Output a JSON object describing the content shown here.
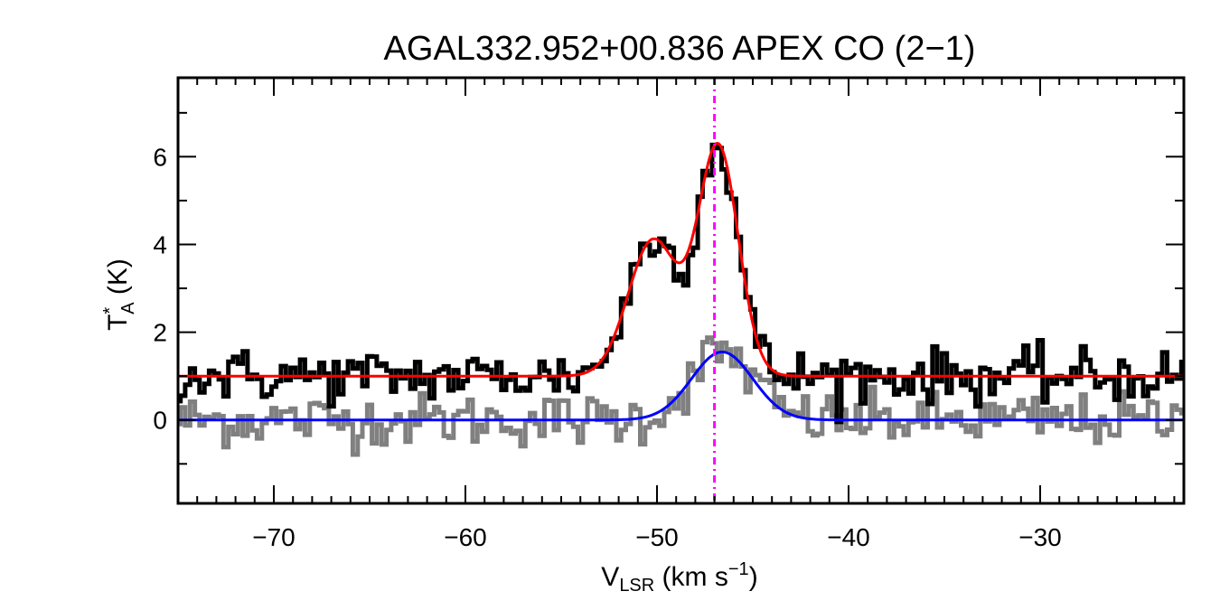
{
  "chart_data": {
    "type": "line",
    "title": "AGAL332.952+00.836  APEX CO (2−1)",
    "xlabel": {
      "base": "V",
      "sub": "LSR",
      "rest": " (km s",
      "sup": "−1",
      "close": ")"
    },
    "ylabel": {
      "base": "T",
      "sup": "*",
      "sub": "A",
      "rest": " (K)"
    },
    "xlim": [
      -75,
      -22.5
    ],
    "ylim": [
      -1.9,
      7.8
    ],
    "xticks": [
      -70,
      -60,
      -50,
      -40,
      -30
    ],
    "xtick_labels": [
      "−70",
      "−60",
      "−50",
      "−40",
      "−30"
    ],
    "yticks": [
      0,
      2,
      4,
      6
    ],
    "ytick_labels": [
      "0",
      "2",
      "4",
      "6"
    ],
    "vline": {
      "x": -47.0,
      "color": "#ff00ff",
      "style": "dash-dot"
    },
    "series": [
      {
        "name": "observed-spectrum",
        "kind": "step",
        "color": "#000000",
        "model": {
          "baseline": 1.0,
          "noise": 0.3,
          "components": [
            {
              "amp": 3.1,
              "center": -50.2,
              "sigma": 1.3
            },
            {
              "amp": 5.2,
              "center": -46.8,
              "sigma": 1.05
            }
          ]
        }
      },
      {
        "name": "residual-spectrum",
        "kind": "step",
        "color": "#808080",
        "model": {
          "baseline": 0.0,
          "noise": 0.3,
          "components": [
            {
              "amp": 1.55,
              "center": -46.6,
              "sigma": 1.6
            }
          ]
        }
      },
      {
        "name": "gaussian-fit",
        "kind": "line",
        "color": "#ff0000",
        "model": {
          "baseline": 1.0,
          "components": [
            {
              "amp": 3.1,
              "center": -50.2,
              "sigma": 1.3
            },
            {
              "amp": 5.2,
              "center": -46.8,
              "sigma": 1.05
            }
          ]
        }
      },
      {
        "name": "model-component",
        "kind": "line",
        "color": "#0000ff",
        "model": {
          "baseline": 0.0,
          "components": [
            {
              "amp": 1.55,
              "center": -46.6,
              "sigma": 1.6
            }
          ]
        }
      }
    ],
    "channel_width_kms": 0.25
  }
}
